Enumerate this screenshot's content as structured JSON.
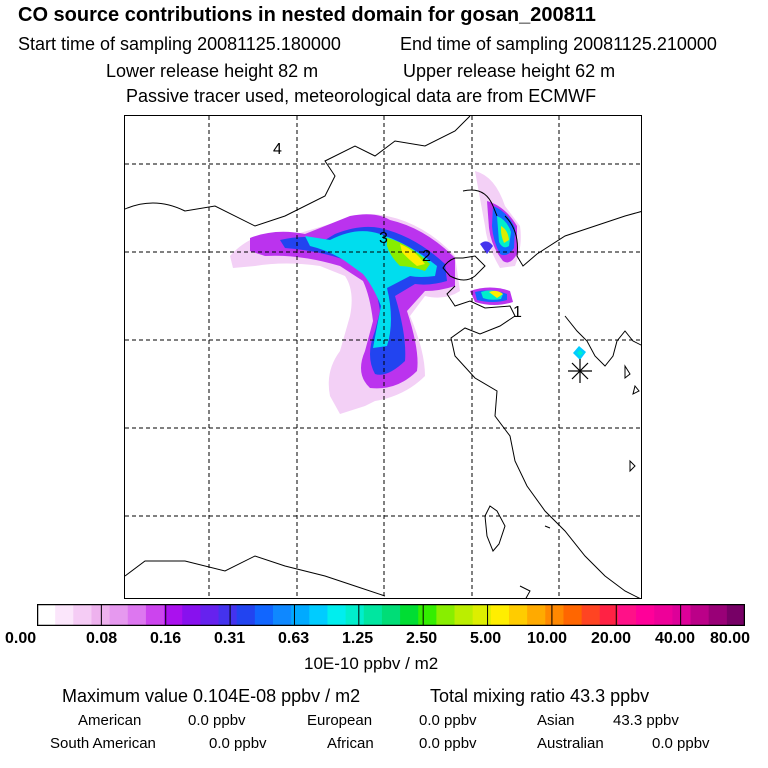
{
  "header": {
    "title": "CO  source contributions in nested domain for gosan_200811",
    "start_time": "Start time of sampling 20081125.180000",
    "end_time": "End time of sampling 20081125.210000",
    "lower_release": "Lower release height   82 m",
    "upper_release": "Upper release height   62 m",
    "note": "Passive tracer used, meteorological data are from ECMWF"
  },
  "map": {
    "source_labels": [
      "1",
      "2",
      "3",
      "4"
    ],
    "receptor_marker": "receptor-star"
  },
  "colorbar": {
    "tick_labels": [
      "0.00",
      "0.08",
      "0.16",
      "0.31",
      "0.63",
      "1.25",
      "2.50",
      "5.00",
      "10.00",
      "20.00",
      "40.00",
      "80.00"
    ],
    "colors": [
      "#ffffff",
      "#fbe6fb",
      "#f5ccf5",
      "#eeb2ee",
      "#e699ef",
      "#dd77f0",
      "#cc44ee",
      "#aa11ee",
      "#8811ee",
      "#6622ee",
      "#4433ee",
      "#2244f0",
      "#1166ff",
      "#0f88ff",
      "#00aaff",
      "#00ccff",
      "#00eeee",
      "#00eecc",
      "#00e6a0",
      "#00dd77",
      "#00dd33",
      "#33ee00",
      "#88ee00",
      "#bbee00",
      "#ddee00",
      "#ffee00",
      "#ffcc00",
      "#ffaa00",
      "#ff8800",
      "#ff6600",
      "#ff4422",
      "#ff2244",
      "#ff1188",
      "#ff0099",
      "#ee0099",
      "#dd0099",
      "#bb0088",
      "#990077",
      "#770066"
    ],
    "unit": "10E-10 ppbv / m2"
  },
  "summary": {
    "max_value": "Maximum value  0.104E-08 ppbv / m2",
    "total_mixing": "Total mixing ratio       43.3 ppbv",
    "american_label": "American",
    "american_value": "0.0 ppbv",
    "european_label": "European",
    "european_value": "0.0 ppbv",
    "asian_label": "Asian",
    "asian_value": "43.3 ppbv",
    "south_american_label": "South American",
    "south_american_value": "0.0 ppbv",
    "african_label": "African",
    "african_value": "0.0 ppbv",
    "australian_label": "Australian",
    "australian_value": "0.0 ppbv"
  }
}
